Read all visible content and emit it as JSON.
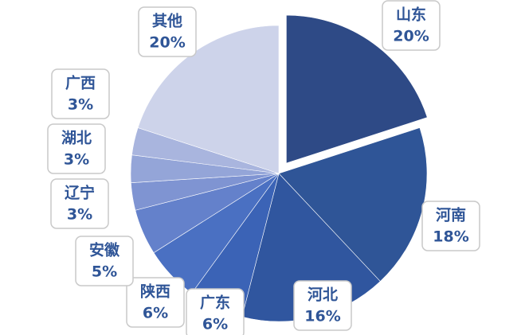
{
  "chart_data": {
    "type": "pie",
    "categories": [
      "山东",
      "河南",
      "河北",
      "广东",
      "陕西",
      "安徽",
      "辽宁",
      "湖北",
      "广西",
      "其他"
    ],
    "values": [
      20,
      18,
      16,
      6,
      6,
      5,
      3,
      3,
      3,
      20
    ],
    "value_labels": [
      "20%",
      "18%",
      "16%",
      "6%",
      "6%",
      "5%",
      "3%",
      "3%",
      "3%",
      "20%"
    ],
    "colors": [
      "#2e4a86",
      "#2f5597",
      "#30569f",
      "#3b63b6",
      "#4a70c2",
      "#6481cb",
      "#7f94d2",
      "#94a5d8",
      "#a9b5de",
      "#cdd3ea"
    ],
    "exploded": [
      0
    ]
  }
}
